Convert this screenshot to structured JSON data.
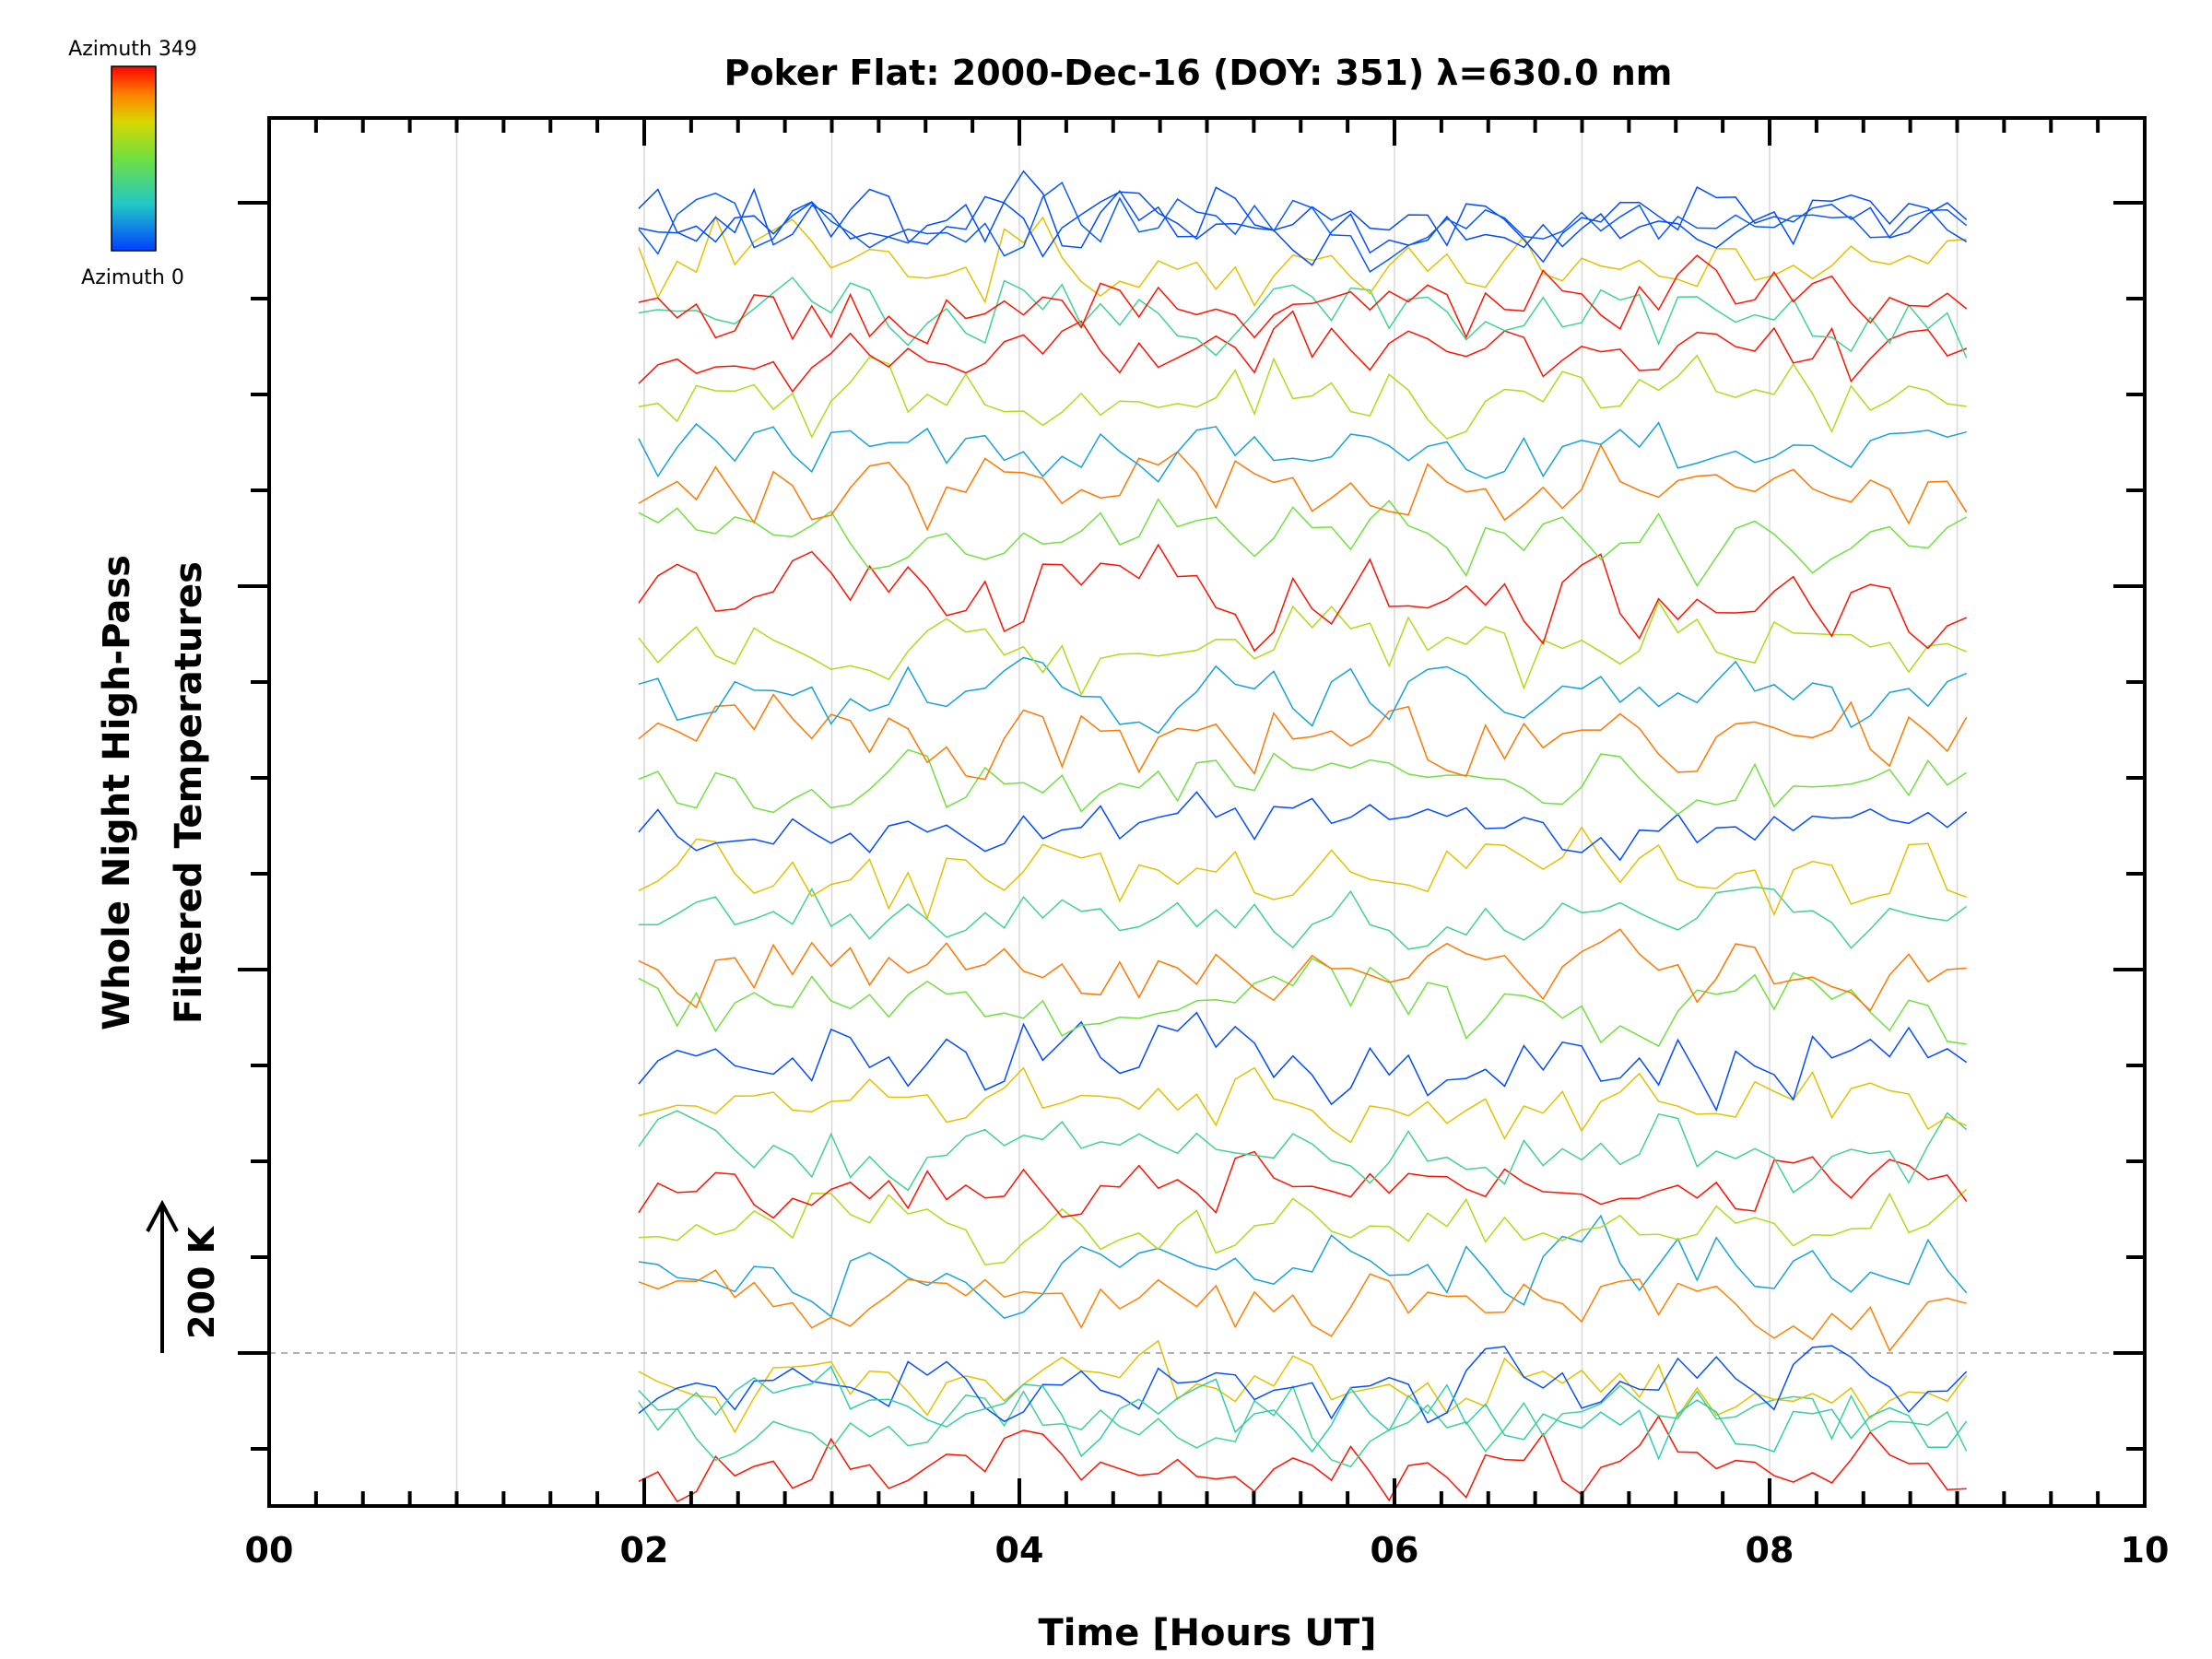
{
  "chart_data": {
    "type": "line",
    "title": "Poker Flat: 2000-Dec-16 (DOY: 351) λ=630.0 nm",
    "xlabel": "Time [Hours UT]",
    "ylabel_line1": "Whole Night High-Pass",
    "ylabel_line2": "Filtered Temperatures",
    "scale_label": "200 K",
    "xlim": [
      0,
      10
    ],
    "x_tick_labels": [
      "00",
      "02",
      "04",
      "06",
      "08",
      "10"
    ],
    "x_ticks": [
      0,
      2,
      4,
      6,
      8,
      10
    ],
    "vertical_gridlines": [
      1,
      2,
      3,
      4,
      5,
      6,
      7,
      8,
      9
    ],
    "grid": true,
    "colorbar": {
      "top_label": "Azimuth 349",
      "bottom_label": "Azimuth 0",
      "colors": [
        "#ff0000",
        "#ff8000",
        "#d8d800",
        "#70e040",
        "#20c8c8",
        "#0040ff"
      ]
    },
    "time_range": [
      1.97,
      9.05
    ],
    "series_count": 48,
    "stack_spacing_units": 0.5,
    "scale_bar_units": 1.0,
    "baseline_units": 0,
    "ylim_units": [
      -0.5,
      7.5
    ]
  }
}
